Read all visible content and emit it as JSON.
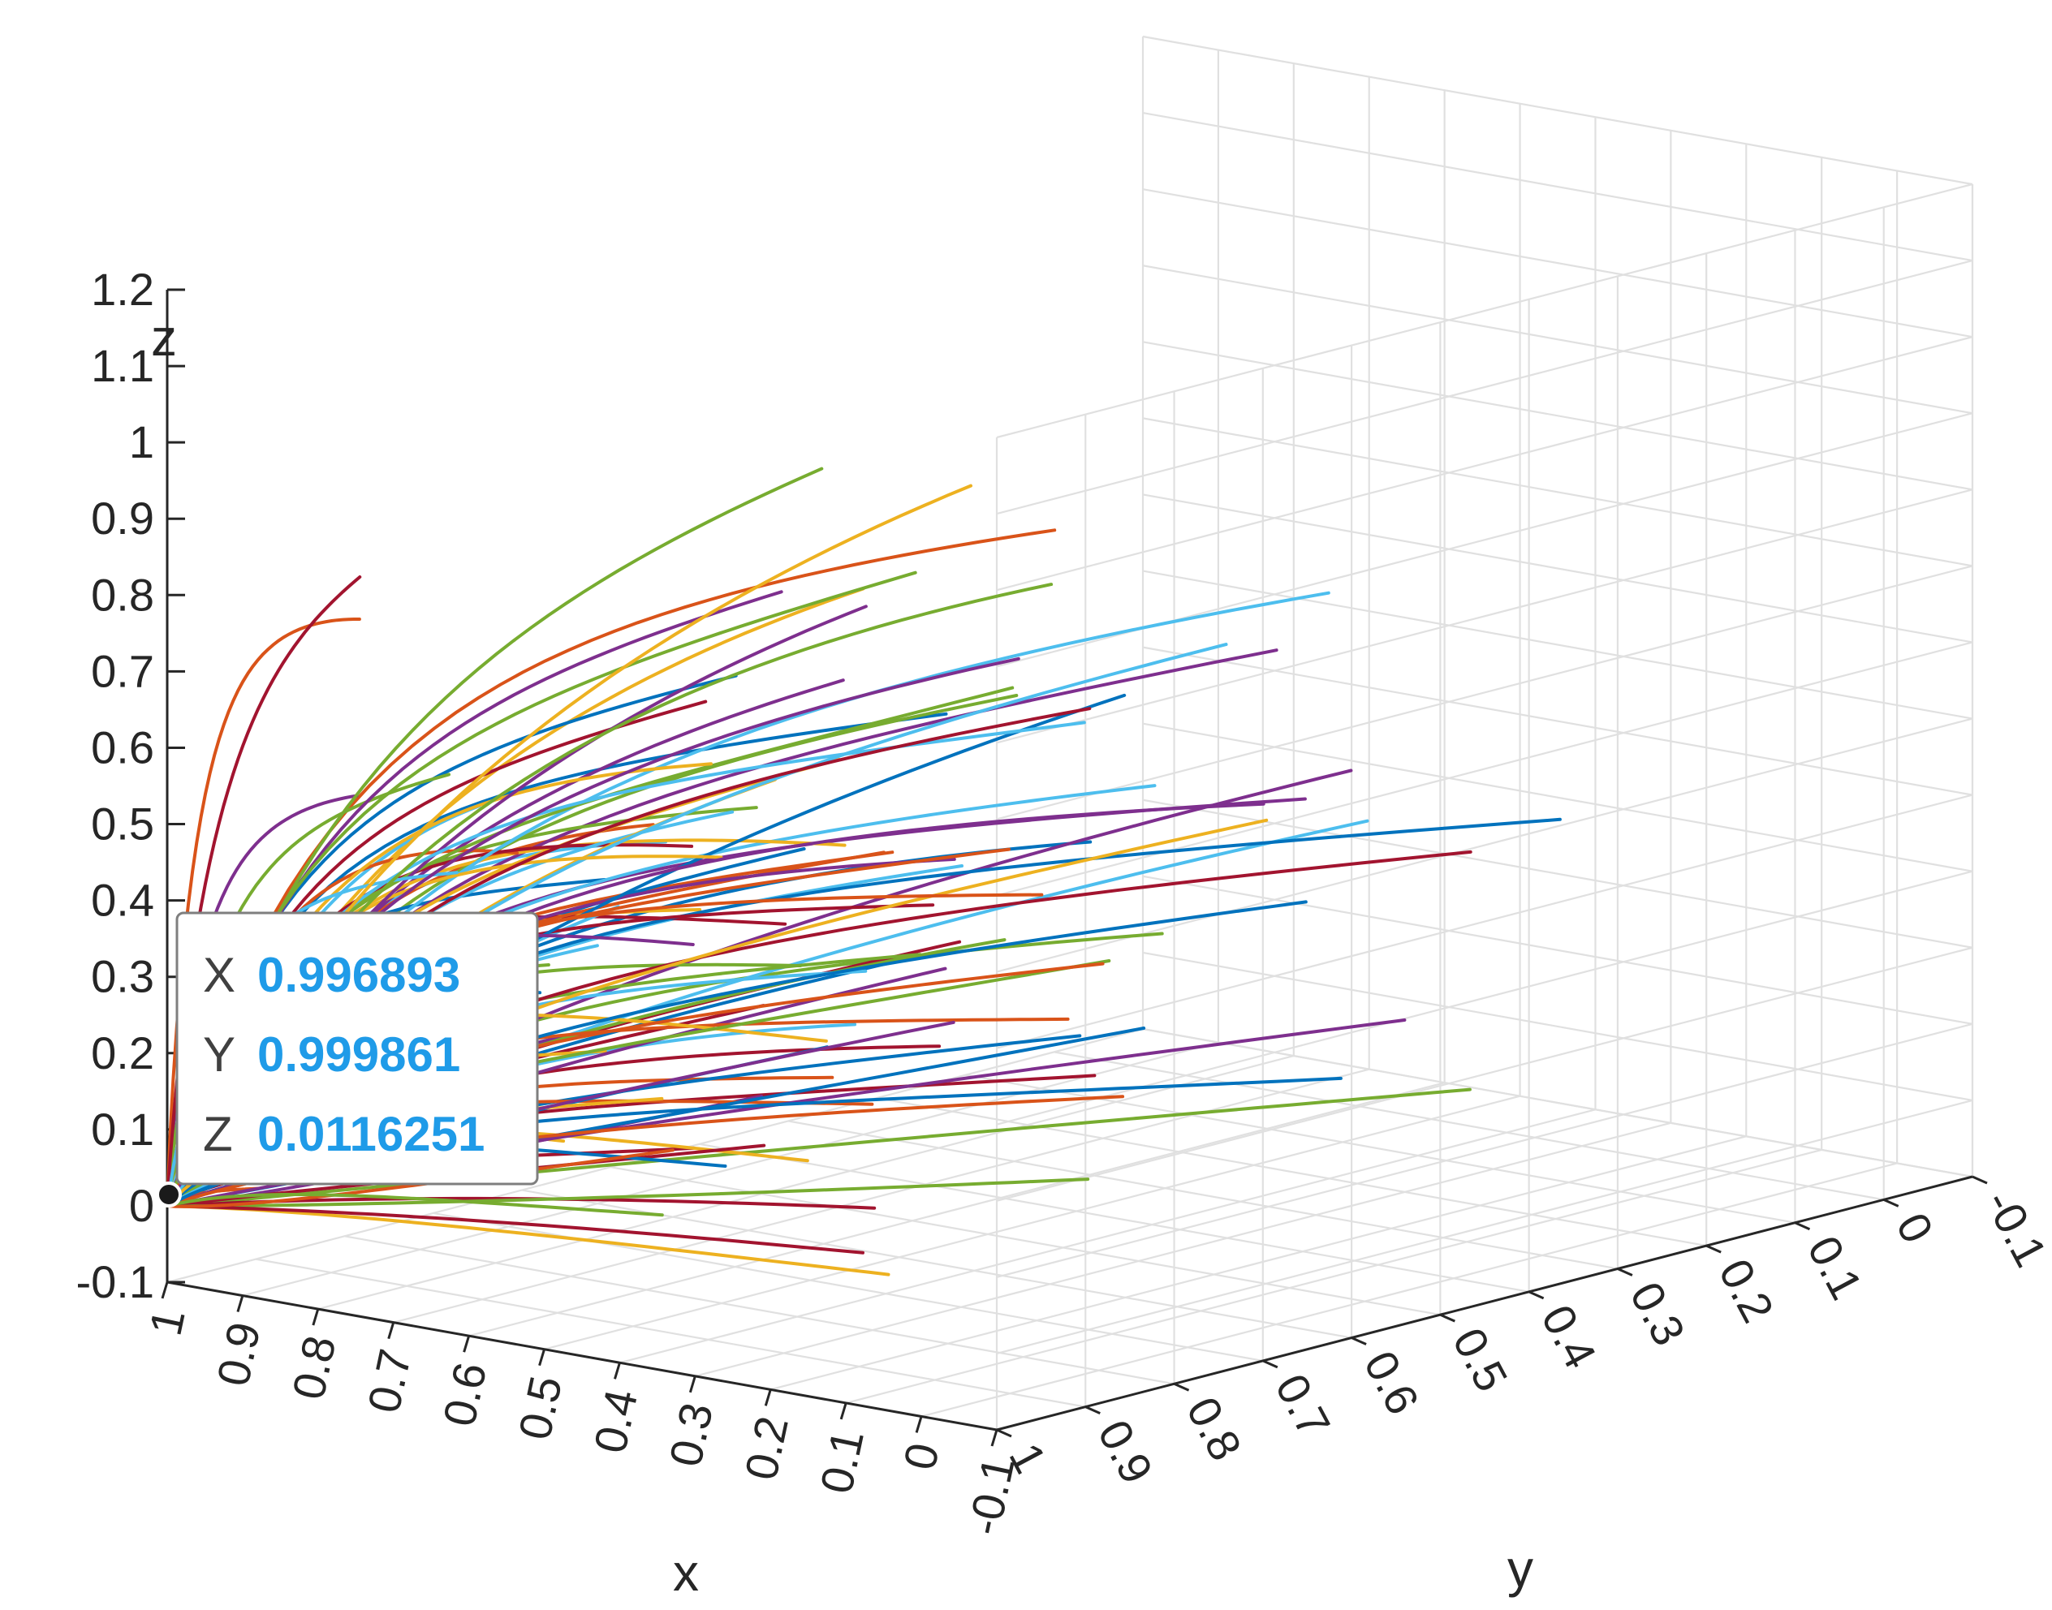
{
  "chart_data": {
    "type": "line",
    "title": "",
    "xlabel": "x",
    "ylabel": "y",
    "zlabel": "z",
    "xlim": [
      -0.1,
      1
    ],
    "ylim": [
      -0.1,
      1
    ],
    "zlim": [
      -0.1,
      1.2
    ],
    "x_ticks": [
      "1",
      "0.9",
      "0.8",
      "0.7",
      "0.6",
      "0.5",
      "0.4",
      "0.3",
      "0.2",
      "0.1",
      "0",
      "-0.1"
    ],
    "y_ticks": [
      "1",
      "0.9",
      "0.8",
      "0.7",
      "0.6",
      "0.5",
      "0.4",
      "0.3",
      "0.2",
      "0.1",
      "0",
      "-0.1"
    ],
    "z_ticks": [
      "1.2",
      "1.1",
      "1",
      "0.9",
      "0.8",
      "0.7",
      "0.6",
      "0.5",
      "0.4",
      "0.3",
      "0.2",
      "0.1",
      "0",
      "-0.1"
    ],
    "grid": true,
    "trajectory_count": 110,
    "trajectory_origin": [
      1,
      1,
      0
    ],
    "series_colors": [
      "#0072BD",
      "#D95319",
      "#EDB120",
      "#7E2F8E",
      "#77AC30",
      "#4DBEEE",
      "#A2142F"
    ],
    "datatip": {
      "x_label": "X",
      "x_value": "0.996893",
      "y_label": "Y",
      "y_value": "0.999861",
      "z_label": "Z",
      "z_value": "0.0116251"
    }
  }
}
